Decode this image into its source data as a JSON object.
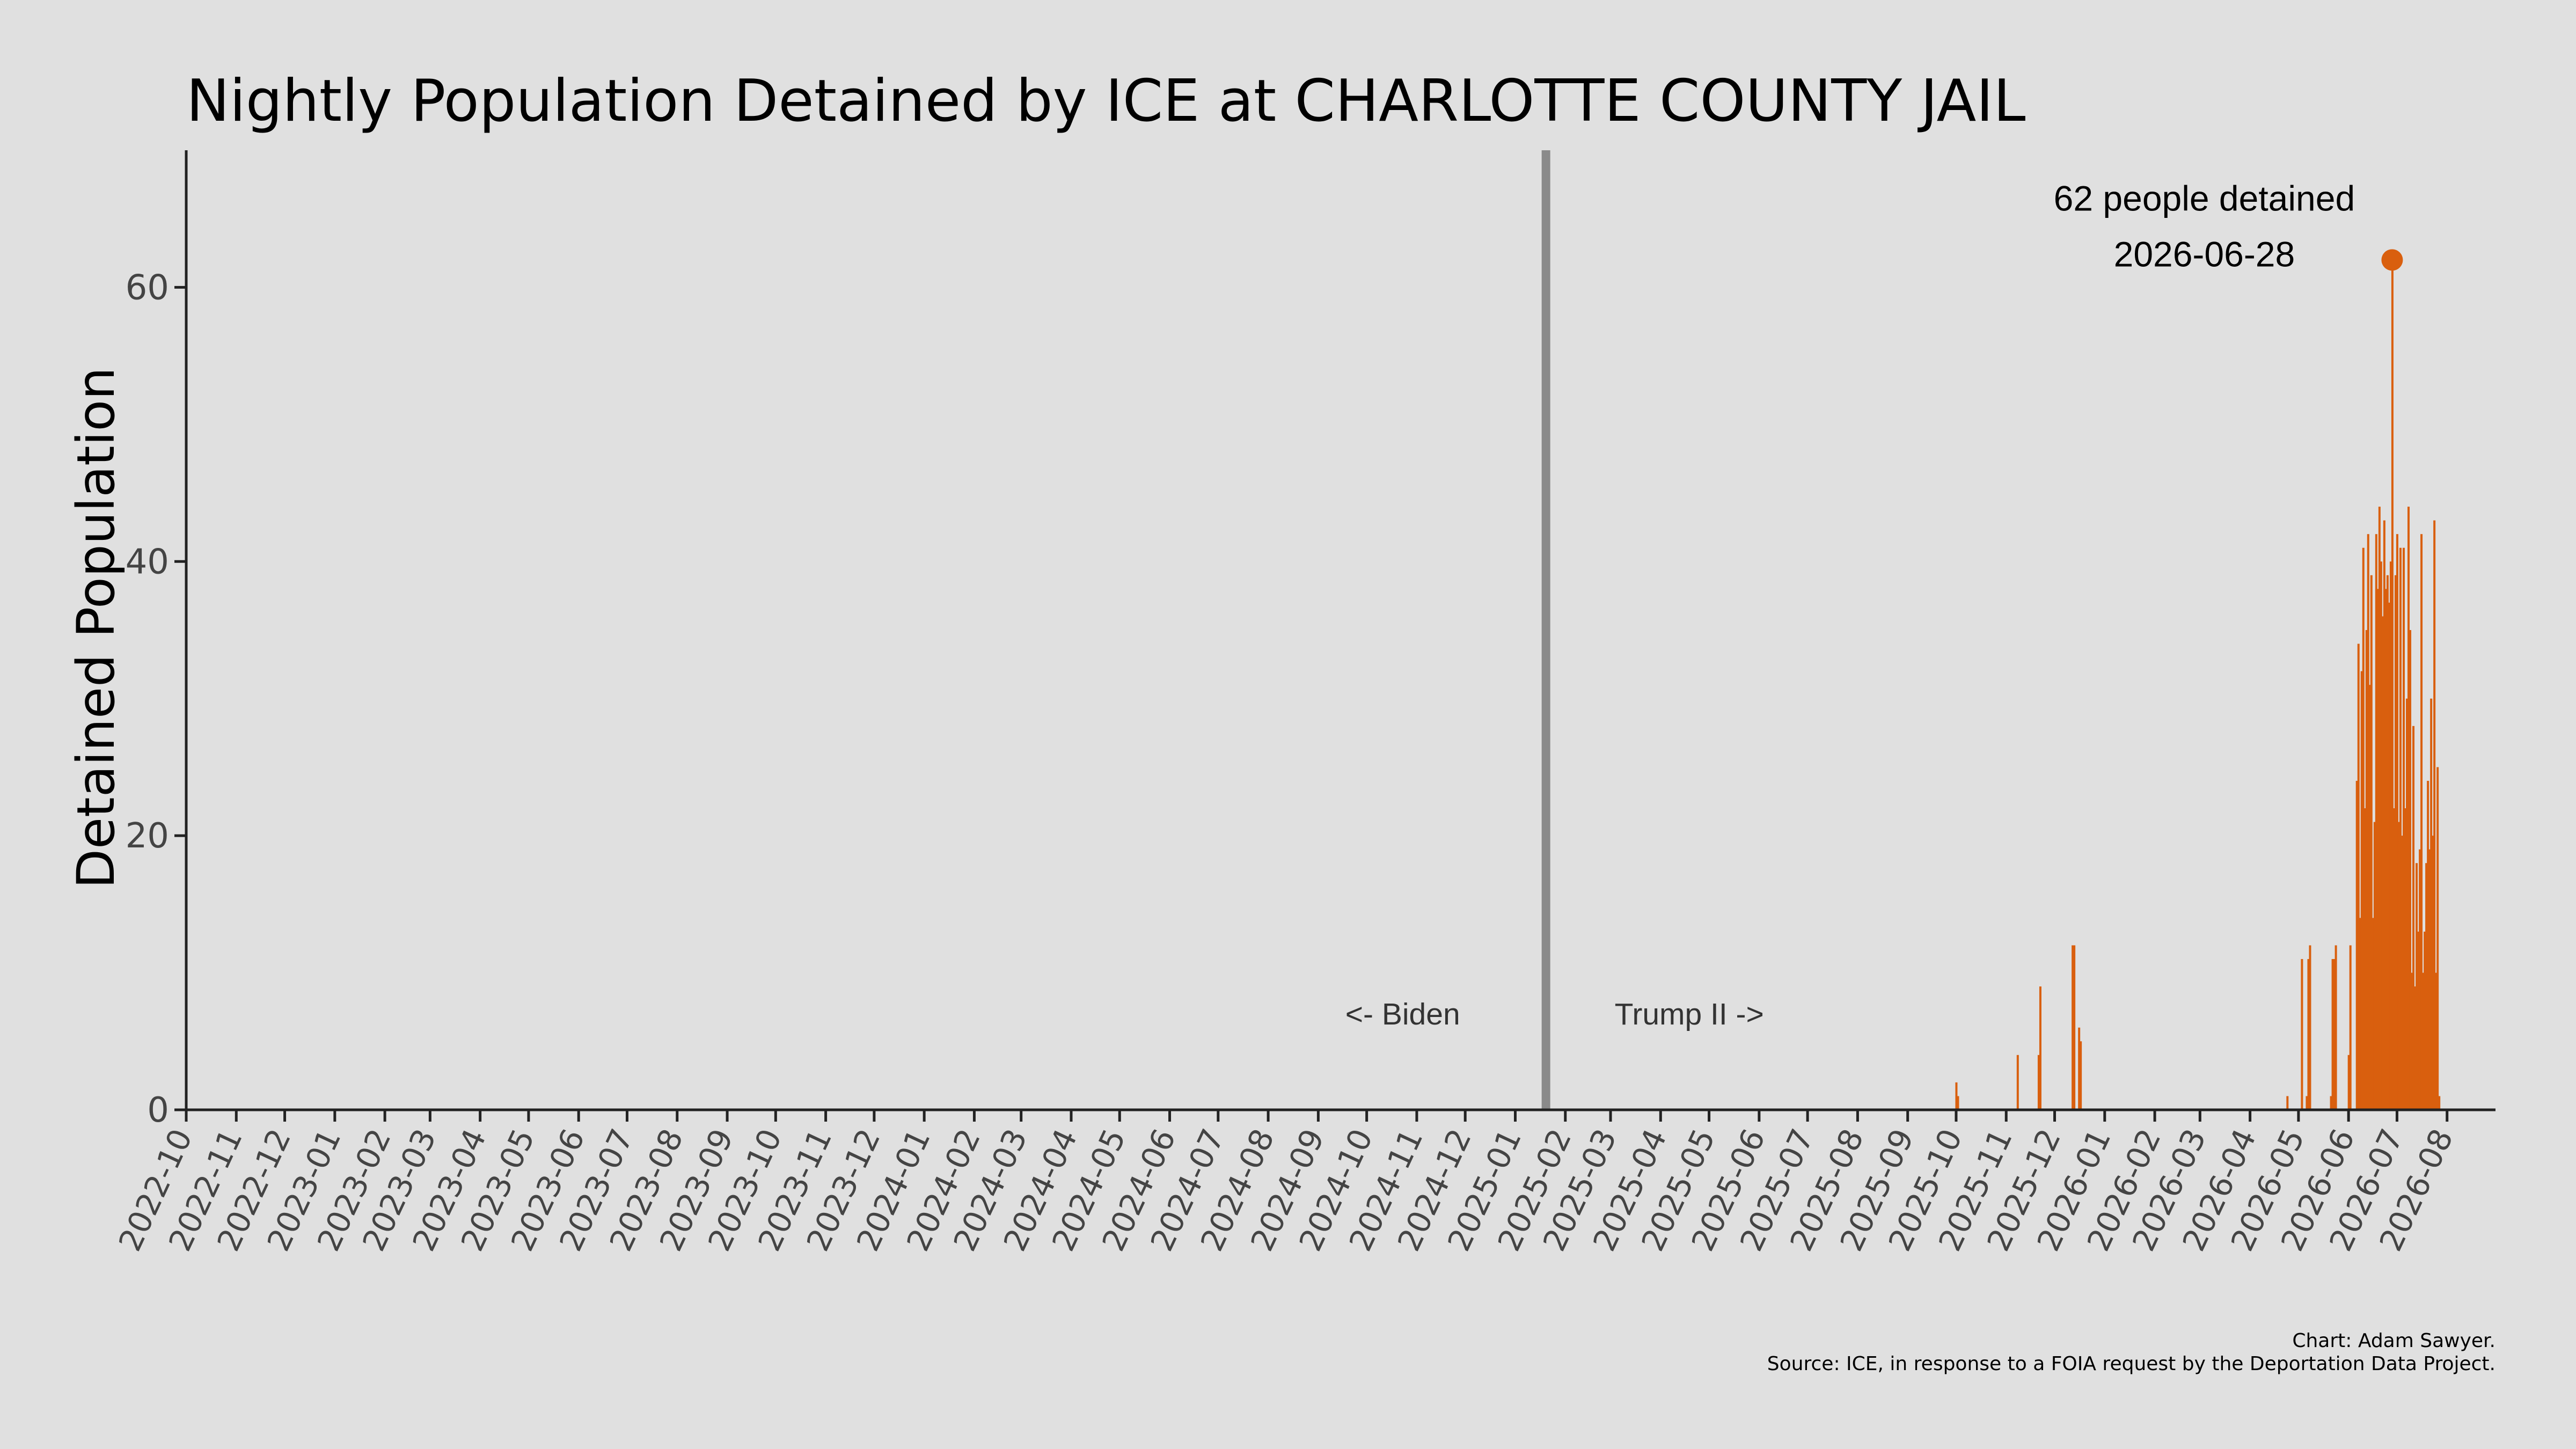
{
  "chart_data": {
    "type": "bar",
    "title": "Nightly Population Detained by ICE at CHARLOTTE COUNTY JAIL",
    "ylabel": "Detained Population",
    "xlabel": "",
    "xlim": [
      "2022-10-01",
      "2026-08-31"
    ],
    "ylim": [
      0,
      70
    ],
    "yticks": [
      0,
      20,
      40,
      60
    ],
    "xtick_labels": [
      "2022-10",
      "2022-11",
      "2022-12",
      "2023-01",
      "2023-02",
      "2023-03",
      "2023-04",
      "2023-05",
      "2023-06",
      "2023-07",
      "2023-08",
      "2023-09",
      "2023-10",
      "2023-11",
      "2023-12",
      "2024-01",
      "2024-02",
      "2024-03",
      "2024-04",
      "2024-05",
      "2024-06",
      "2024-07",
      "2024-08",
      "2024-09",
      "2024-10",
      "2024-11",
      "2024-12",
      "2025-01",
      "2025-02",
      "2025-03",
      "2025-04",
      "2025-05",
      "2025-06",
      "2025-07",
      "2025-08",
      "2025-09",
      "2025-10",
      "2025-11",
      "2025-12",
      "2026-01",
      "2026-02",
      "2026-03",
      "2026-04",
      "2026-05",
      "2026-06",
      "2026-07",
      "2026-08"
    ],
    "grid": false,
    "bar_color": "#d95f0e",
    "divider": {
      "date": "2025-01-20",
      "color": "#8a8a8a",
      "left_label": "<- Biden",
      "right_label": "Trump II ->"
    },
    "peak": {
      "date": "2026-06-28",
      "value": 62,
      "label_line1": "62 people detained",
      "label_line2": "2026-06-28"
    },
    "series": [
      {
        "points": [
          [
            "2025-10-01",
            2
          ],
          [
            "2025-10-02",
            1
          ],
          [
            "2025-11-08",
            4
          ],
          [
            "2025-11-21",
            4
          ],
          [
            "2025-11-22",
            9
          ],
          [
            "2025-12-12",
            12
          ],
          [
            "2025-12-13",
            12
          ],
          [
            "2025-12-16",
            6
          ],
          [
            "2025-12-17",
            5
          ],
          [
            "2026-04-24",
            1
          ],
          [
            "2026-05-03",
            11
          ],
          [
            "2026-05-06",
            1
          ],
          [
            "2026-05-07",
            11
          ],
          [
            "2026-05-08",
            12
          ],
          [
            "2026-05-21",
            1
          ],
          [
            "2026-05-22",
            11
          ],
          [
            "2026-05-23",
            11
          ],
          [
            "2026-05-24",
            12
          ],
          [
            "2026-06-01",
            4
          ],
          [
            "2026-06-02",
            12
          ],
          [
            "2026-06-06",
            24
          ],
          [
            "2026-06-07",
            34
          ],
          [
            "2026-06-08",
            14
          ],
          [
            "2026-06-09",
            32
          ],
          [
            "2026-06-10",
            41
          ],
          [
            "2026-06-11",
            22
          ],
          [
            "2026-06-12",
            35
          ],
          [
            "2026-06-13",
            42
          ],
          [
            "2026-06-14",
            31
          ],
          [
            "2026-06-15",
            39
          ],
          [
            "2026-06-16",
            14
          ],
          [
            "2026-06-17",
            21
          ],
          [
            "2026-06-18",
            42
          ],
          [
            "2026-06-19",
            38
          ],
          [
            "2026-06-20",
            44
          ],
          [
            "2026-06-21",
            40
          ],
          [
            "2026-06-22",
            36
          ],
          [
            "2026-06-23",
            43
          ],
          [
            "2026-06-24",
            38
          ],
          [
            "2026-06-25",
            39
          ],
          [
            "2026-06-26",
            37
          ],
          [
            "2026-06-27",
            40
          ],
          [
            "2026-06-28",
            62
          ],
          [
            "2026-06-29",
            22
          ],
          [
            "2026-06-30",
            39
          ],
          [
            "2026-07-01",
            42
          ],
          [
            "2026-07-02",
            21
          ],
          [
            "2026-07-03",
            41
          ],
          [
            "2026-07-04",
            20
          ],
          [
            "2026-07-05",
            41
          ],
          [
            "2026-07-06",
            22
          ],
          [
            "2026-07-07",
            30
          ],
          [
            "2026-07-08",
            44
          ],
          [
            "2026-07-09",
            35
          ],
          [
            "2026-07-10",
            10
          ],
          [
            "2026-07-11",
            28
          ],
          [
            "2026-07-12",
            9
          ],
          [
            "2026-07-13",
            18
          ],
          [
            "2026-07-14",
            13
          ],
          [
            "2026-07-15",
            19
          ],
          [
            "2026-07-16",
            42
          ],
          [
            "2026-07-17",
            10
          ],
          [
            "2026-07-18",
            13
          ],
          [
            "2026-07-19",
            18
          ],
          [
            "2026-07-20",
            24
          ],
          [
            "2026-07-21",
            19
          ],
          [
            "2026-07-22",
            30
          ],
          [
            "2026-07-23",
            20
          ],
          [
            "2026-07-24",
            43
          ],
          [
            "2026-07-25",
            10
          ],
          [
            "2026-07-26",
            25
          ],
          [
            "2026-07-27",
            1
          ]
        ]
      }
    ]
  },
  "caption": {
    "line1": "Chart: Adam Sawyer.",
    "line2": "Source: ICE, in response to a FOIA request by the Deportation Data Project."
  }
}
